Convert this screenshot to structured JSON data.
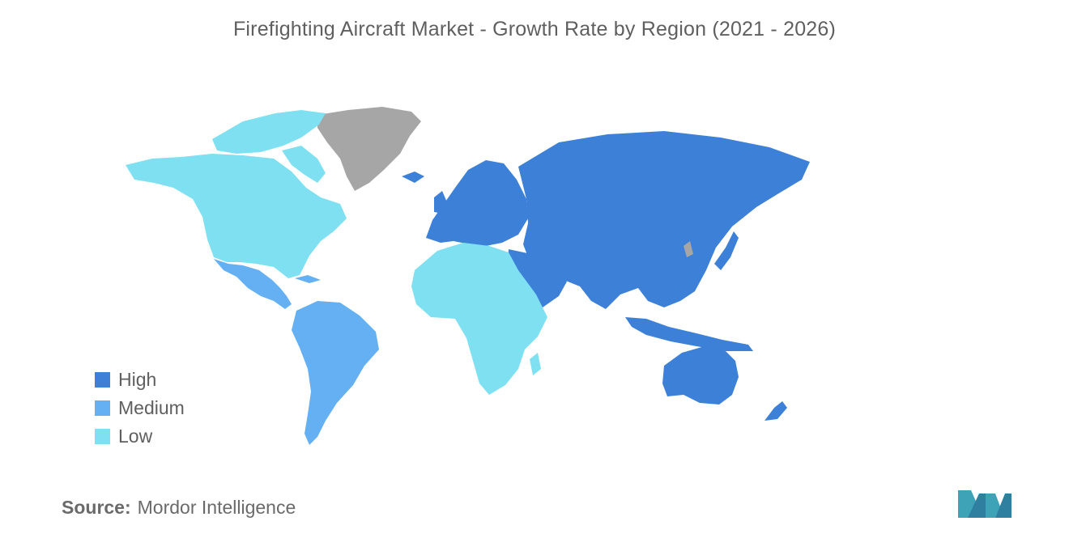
{
  "title": "Firefighting Aircraft Market - Growth Rate by Region (2021 - 2026)",
  "legend": [
    {
      "label": "High",
      "color": "#3d80d8"
    },
    {
      "label": "Medium",
      "color": "#64b0f3"
    },
    {
      "label": "Low",
      "color": "#7ee0f1"
    }
  ],
  "no_data_color": "#a6a6a6",
  "regions": [
    {
      "region": "Europe",
      "level": "High"
    },
    {
      "region": "Russia & Asia",
      "level": "High"
    },
    {
      "region": "Middle East",
      "level": "High"
    },
    {
      "region": "Australia & New Zealand",
      "level": "High"
    },
    {
      "region": "Mexico & Central America",
      "level": "Medium"
    },
    {
      "region": "South America",
      "level": "Medium"
    },
    {
      "region": "North America",
      "level": "Low"
    },
    {
      "region": "Africa",
      "level": "Low"
    },
    {
      "region": "Greenland",
      "level": "No data"
    }
  ],
  "source": {
    "label": "Source:",
    "text": "Mordor Intelligence"
  }
}
